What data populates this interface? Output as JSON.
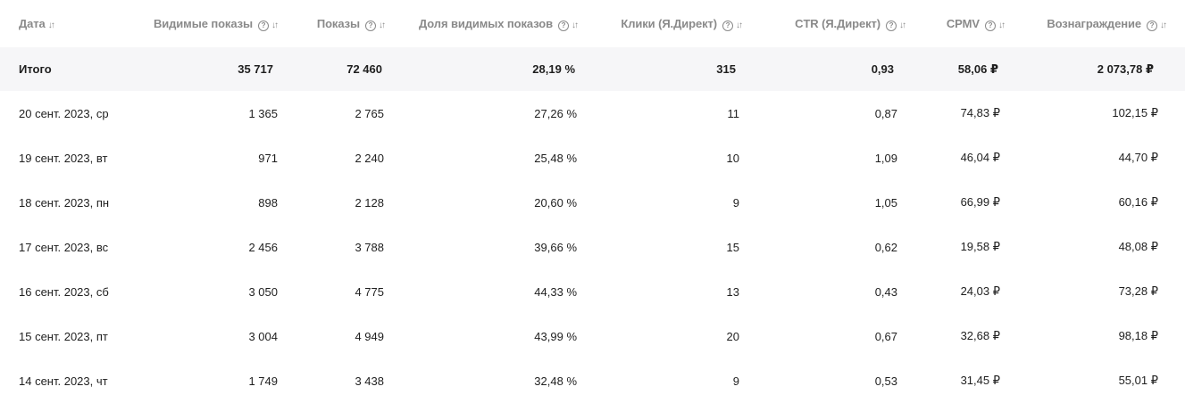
{
  "columns": [
    {
      "label": "Дата",
      "hint": false,
      "sort": true
    },
    {
      "label": "Видимые показы",
      "hint": true,
      "sort": true
    },
    {
      "label": "Показы",
      "hint": true,
      "sort": true
    },
    {
      "label": "Доля видимых показов",
      "hint": true,
      "sort": true
    },
    {
      "label": "Клики (Я.Директ)",
      "hint": true,
      "sort": true
    },
    {
      "label": "CTR (Я.Директ)",
      "hint": true,
      "sort": true
    },
    {
      "label": "CPMV",
      "hint": true,
      "sort": true
    },
    {
      "label": "Вознаграждение",
      "hint": true,
      "sort": true
    }
  ],
  "icons": {
    "hint": "question-circle-icon",
    "sort": "sort-arrows-icon"
  },
  "total": {
    "label": "Итого",
    "visible_impressions": "35 717",
    "impressions": "72 460",
    "visible_share": "28,19 %",
    "clicks": "315",
    "ctr": "0,93",
    "cpmv": "58,06 ₽",
    "reward": "2 073,78 ₽"
  },
  "rows": [
    {
      "date": "20 сент. 2023, ср",
      "visible_impressions": "1 365",
      "impressions": "2 765",
      "visible_share": "27,26 %",
      "clicks": "11",
      "ctr": "0,87",
      "cpmv": "74,83 ₽",
      "reward": "102,15 ₽"
    },
    {
      "date": "19 сент. 2023, вт",
      "visible_impressions": "971",
      "impressions": "2 240",
      "visible_share": "25,48 %",
      "clicks": "10",
      "ctr": "1,09",
      "cpmv": "46,04 ₽",
      "reward": "44,70 ₽"
    },
    {
      "date": "18 сент. 2023, пн",
      "visible_impressions": "898",
      "impressions": "2 128",
      "visible_share": "20,60 %",
      "clicks": "9",
      "ctr": "1,05",
      "cpmv": "66,99 ₽",
      "reward": "60,16 ₽"
    },
    {
      "date": "17 сент. 2023, вс",
      "visible_impressions": "2 456",
      "impressions": "3 788",
      "visible_share": "39,66 %",
      "clicks": "15",
      "ctr": "0,62",
      "cpmv": "19,58 ₽",
      "reward": "48,08 ₽"
    },
    {
      "date": "16 сент. 2023, сб",
      "visible_impressions": "3 050",
      "impressions": "4 775",
      "visible_share": "44,33 %",
      "clicks": "13",
      "ctr": "0,43",
      "cpmv": "24,03 ₽",
      "reward": "73,28 ₽"
    },
    {
      "date": "15 сент. 2023, пт",
      "visible_impressions": "3 004",
      "impressions": "4 949",
      "visible_share": "43,99 %",
      "clicks": "20",
      "ctr": "0,67",
      "cpmv": "32,68 ₽",
      "reward": "98,18 ₽"
    },
    {
      "date": "14 сент. 2023, чт",
      "visible_impressions": "1 749",
      "impressions": "3 438",
      "visible_share": "32,48 %",
      "clicks": "9",
      "ctr": "0,53",
      "cpmv": "31,45 ₽",
      "reward": "55,01 ₽"
    }
  ]
}
